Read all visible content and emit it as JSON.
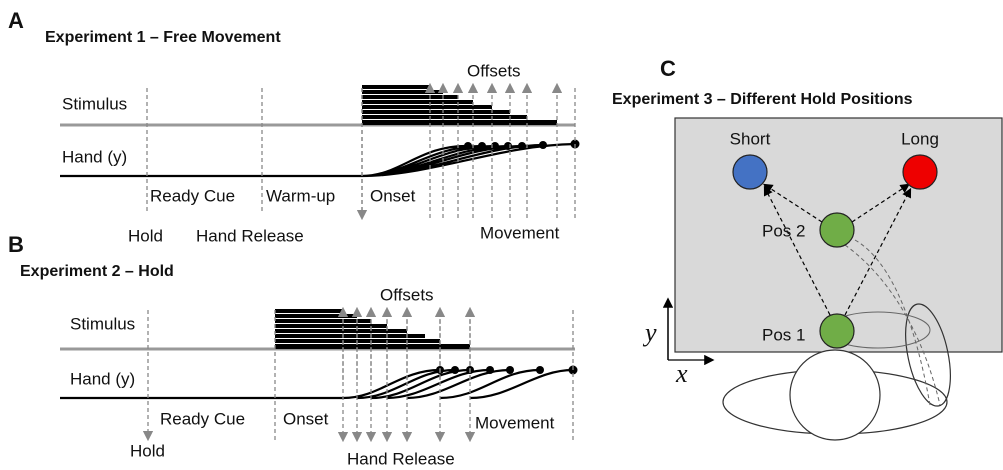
{
  "panel_a": {
    "letter": "A",
    "title": "Experiment 1 – Free Movement",
    "offsets": "Offsets",
    "stimulus": "Stimulus",
    "hand": "Hand (y)",
    "ready_cue": "Ready Cue",
    "warm_up": "Warm-up",
    "onset": "Onset",
    "hold": "Hold",
    "hand_release": "Hand Release",
    "movement": "Movement"
  },
  "panel_b": {
    "letter": "B",
    "title": "Experiment 2 – Hold",
    "offsets": "Offsets",
    "stimulus": "Stimulus",
    "hand": "Hand (y)",
    "ready_cue": "Ready Cue",
    "onset": "Onset",
    "movement": "Movement",
    "hold": "Hold",
    "hand_release": "Hand Release"
  },
  "panel_c": {
    "letter": "C",
    "title": "Experiment 3 – Different Hold Positions",
    "short": "Short",
    "long": "Long",
    "pos2": "Pos 2",
    "pos1": "Pos 1",
    "y_axis": "y",
    "x_axis": "x"
  }
}
